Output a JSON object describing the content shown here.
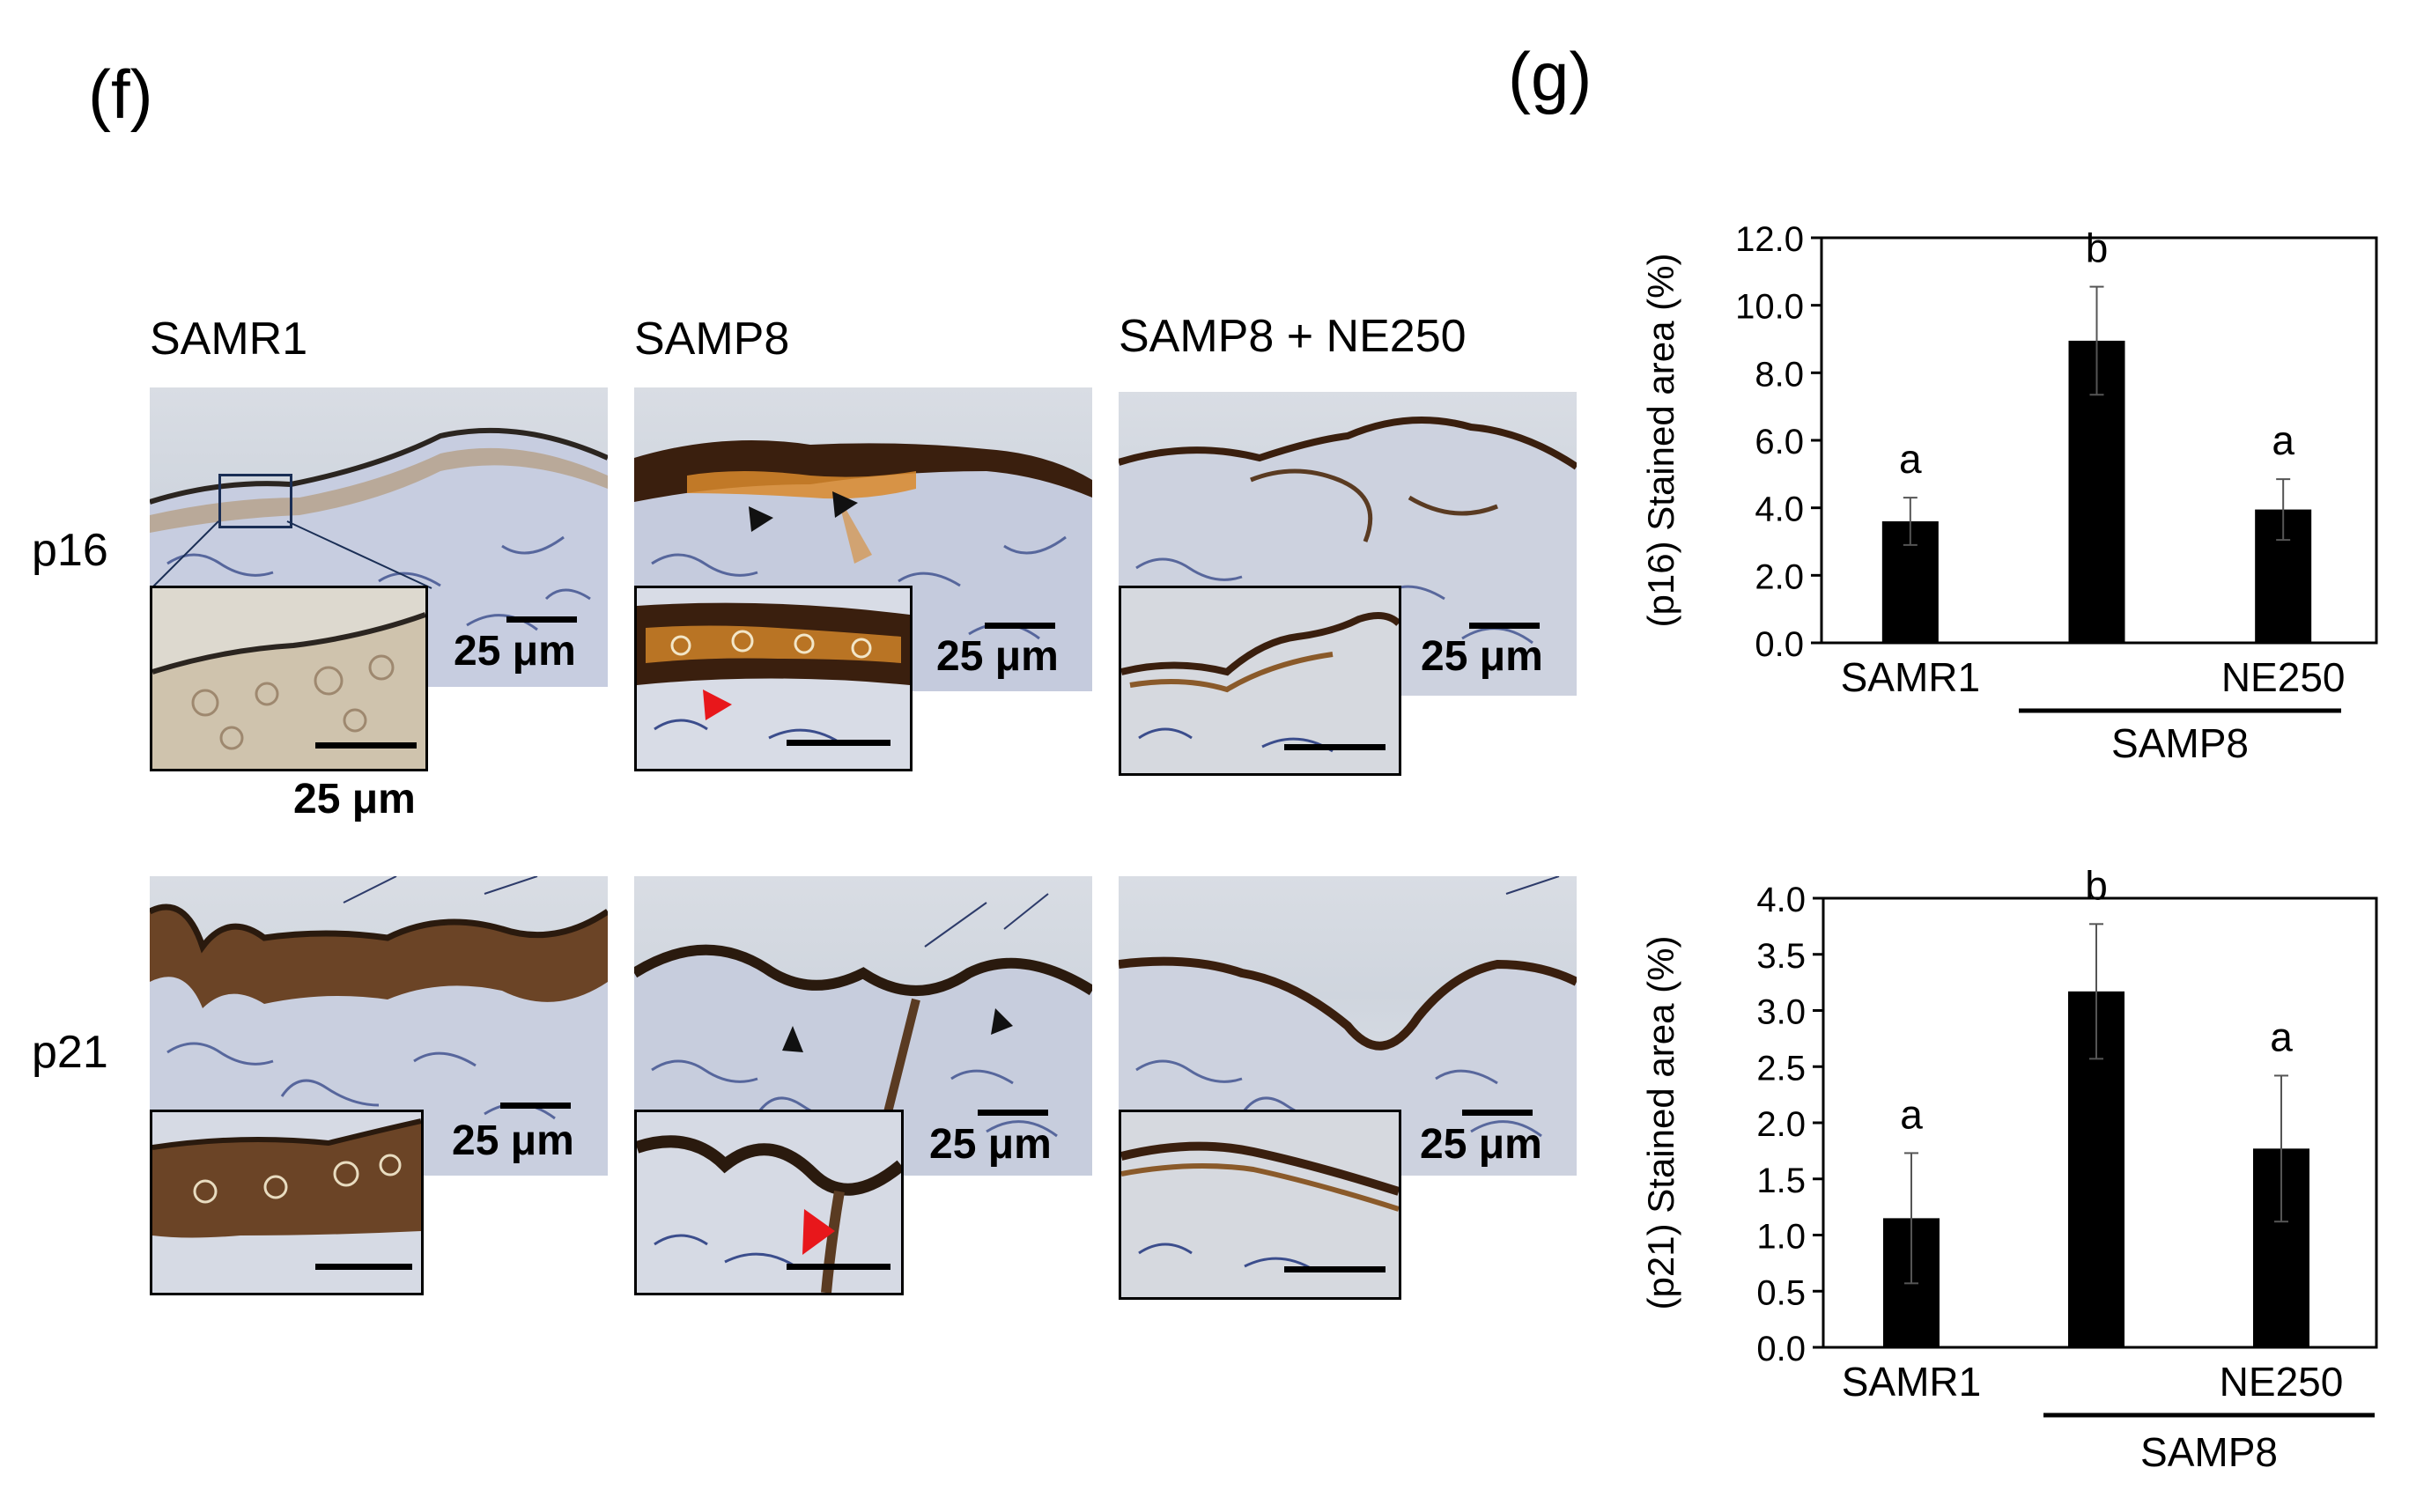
{
  "panel_labels": {
    "f": "(f)",
    "g": "(g)"
  },
  "micrographs": {
    "columns": [
      "SAMR1",
      "SAMP8",
      "SAMP8 + NE250"
    ],
    "rows": [
      "p16",
      "p21"
    ],
    "scale_label": "25 μm"
  },
  "colors": {
    "bar": "#000000",
    "stain_dark": "#3a1f0e",
    "stain_brown": "#8a5a2a",
    "stain_orange": "#d9892b",
    "counterstain": "#3b4d8c",
    "arrow_black": "#111111",
    "arrow_red": "#e8171b"
  },
  "chart_data": [
    {
      "type": "bar",
      "ylabel": "(p16) Stained area (%)",
      "ylim": [
        0,
        12
      ],
      "yticks": [
        "0.0",
        "2.0",
        "4.0",
        "6.0",
        "8.0",
        "10.0",
        "12.0"
      ],
      "categories": [
        "SAMR1",
        "",
        "NE250"
      ],
      "group_label": "SAMP8",
      "values": [
        3.6,
        8.95,
        3.95
      ],
      "errors": [
        0.7,
        1.6,
        0.9
      ],
      "significance": [
        "a",
        "b",
        "a"
      ]
    },
    {
      "type": "bar",
      "ylabel": "(p21) Stained area (%)",
      "ylim": [
        0,
        4
      ],
      "yticks": [
        "0.0",
        "0.5",
        "1.0",
        "1.5",
        "2.0",
        "2.5",
        "3.0",
        "3.5",
        "4.0"
      ],
      "categories": [
        "SAMR1",
        "",
        "NE250"
      ],
      "group_label": "SAMP8",
      "values": [
        1.15,
        3.17,
        1.77
      ],
      "errors": [
        0.58,
        0.6,
        0.65
      ],
      "significance": [
        "a",
        "b",
        "a"
      ]
    }
  ]
}
